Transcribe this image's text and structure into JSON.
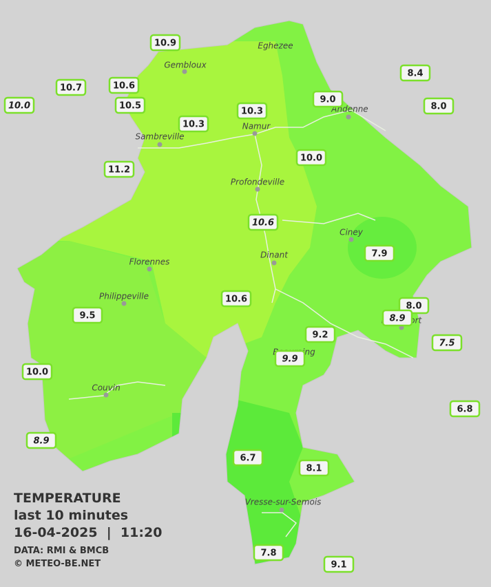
{
  "title": "TEMPERATURE",
  "subtitle": "last 10 minutes",
  "timestamp": "16-04-2025  |  11:20",
  "source": "DATA: RMI & BMCB",
  "credit": "© METEO-BE.NET",
  "cities": [
    "Eghezee",
    "Gembloux",
    "Andenne",
    "Namur",
    "Sambreville",
    "Profondeville",
    "Ciney",
    "Dinant",
    "Florennes",
    "Philippeville",
    "Rochefort",
    "Beauraing",
    "Couvin",
    "Vresse-sur-Semois"
  ],
  "stations": [
    "10.9",
    "10.7",
    "10.6",
    "10.0",
    "10.5",
    "10.3",
    "10.3",
    "9.0",
    "8.4",
    "8.0",
    "10.0",
    "11.2",
    "10.6",
    "7.9",
    "10.6",
    "9.5",
    "8.0",
    "8.9",
    "9.2",
    "7.5",
    "9.9",
    "10.0",
    "6.8",
    "8.9",
    "6.7",
    "8.1",
    "7.8",
    "9.1"
  ]
}
